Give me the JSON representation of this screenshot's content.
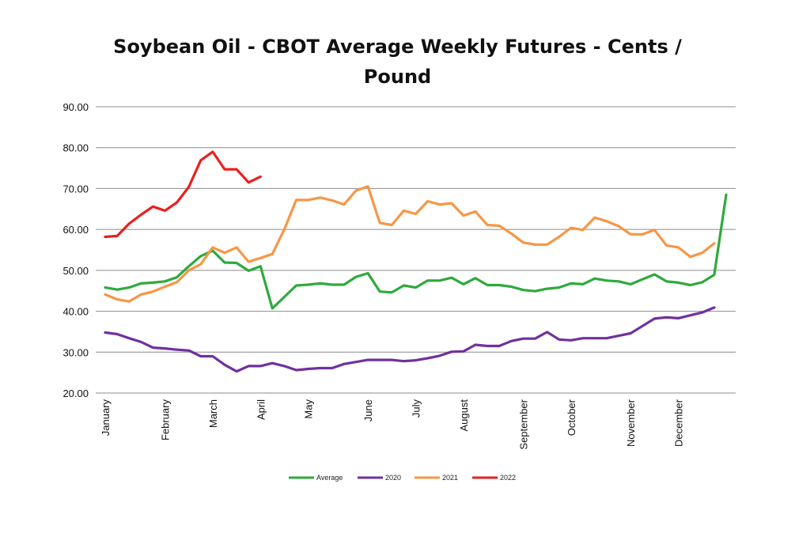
{
  "chart_data": {
    "type": "line",
    "title_line1": "Soybean Oil - CBOT Average Weekly Futures - Cents /",
    "title_line2": "Pound",
    "xlabel": "",
    "ylabel": "",
    "ylim": [
      20,
      90
    ],
    "y_ticks": [
      "20.00",
      "30.00",
      "40.00",
      "50.00",
      "60.00",
      "70.00",
      "80.00",
      "90.00"
    ],
    "y_tick_values": [
      20,
      30,
      40,
      50,
      60,
      70,
      80,
      90
    ],
    "month_ticks": [
      {
        "label": "January",
        "week": 1
      },
      {
        "label": "February",
        "week": 6
      },
      {
        "label": "March",
        "week": 10
      },
      {
        "label": "April",
        "week": 14
      },
      {
        "label": "May",
        "week": 18
      },
      {
        "label": "June",
        "week": 23
      },
      {
        "label": "July",
        "week": 27
      },
      {
        "label": "August",
        "week": 31
      },
      {
        "label": "September",
        "week": 36
      },
      {
        "label": "October",
        "week": 40
      },
      {
        "label": "November",
        "week": 45
      },
      {
        "label": "December",
        "week": 49
      }
    ],
    "weeks": 53,
    "grid": true,
    "legend_position": "bottom",
    "series": [
      {
        "name": "Average",
        "color": "#2eaa3c",
        "values": [
          45.8,
          45.3,
          45.8,
          46.8,
          47.0,
          47.3,
          48.3,
          51.0,
          53.5,
          54.8,
          51.9,
          51.8,
          49.9,
          51.0,
          40.7,
          43.5,
          46.3,
          46.5,
          46.8,
          46.5,
          46.5,
          48.4,
          49.3,
          44.8,
          44.6,
          46.3,
          45.8,
          47.5,
          47.5,
          48.2,
          46.6,
          48.1,
          46.4,
          46.4,
          46.0,
          45.2,
          44.9,
          45.5,
          45.8,
          46.8,
          46.6,
          48.0,
          47.5,
          47.3,
          46.6,
          47.8,
          49.0,
          47.3,
          47.0,
          46.4,
          47.1,
          48.9,
          68.5
        ]
      },
      {
        "name": "2020",
        "color": "#7030a0",
        "values": [
          34.8,
          34.4,
          33.4,
          32.5,
          31.1,
          30.9,
          30.6,
          30.4,
          29.0,
          29.0,
          26.9,
          25.3,
          26.6,
          26.6,
          27.3,
          26.6,
          25.6,
          25.9,
          26.1,
          26.1,
          27.1,
          27.6,
          28.1,
          28.1,
          28.1,
          27.8,
          28.0,
          28.5,
          29.1,
          30.1,
          30.2,
          31.8,
          31.5,
          31.5,
          32.7,
          33.3,
          33.3,
          34.9,
          33.1,
          32.9,
          33.4,
          33.4,
          33.4,
          34.0,
          34.6,
          36.4,
          38.2,
          38.5,
          38.3,
          39.0,
          39.7,
          40.9
        ]
      },
      {
        "name": "2021",
        "color": "#f79646",
        "values": [
          44.1,
          42.9,
          42.4,
          44.1,
          44.8,
          46.0,
          47.1,
          50.0,
          51.5,
          55.6,
          54.3,
          55.6,
          52.1,
          53.0,
          54.0,
          60.0,
          67.2,
          67.2,
          67.8,
          67.1,
          66.1,
          69.5,
          70.5,
          61.6,
          61.1,
          64.6,
          63.8,
          66.9,
          66.1,
          66.4,
          63.4,
          64.4,
          61.1,
          60.9,
          59.0,
          56.8,
          56.3,
          56.3,
          58.2,
          60.4,
          59.9,
          62.9,
          62.0,
          60.8,
          58.8,
          58.8,
          59.9,
          56.1,
          55.6,
          53.3,
          54.3,
          56.6
        ]
      },
      {
        "name": "2022",
        "color": "#e8201e",
        "values": [
          58.2,
          58.4,
          61.4,
          63.6,
          65.6,
          64.6,
          66.6,
          70.4,
          76.9,
          79.0,
          74.7,
          74.7,
          71.5,
          72.9
        ]
      }
    ]
  }
}
